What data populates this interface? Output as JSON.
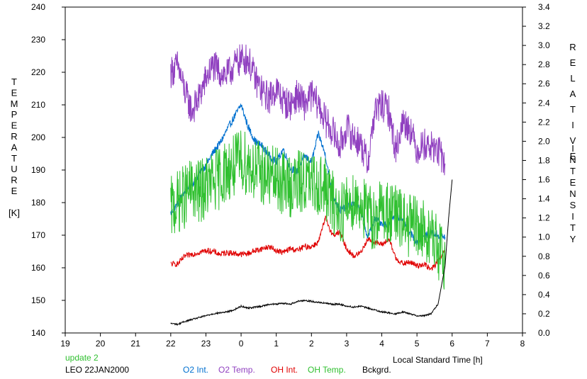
{
  "chart_data": {
    "type": "line",
    "xlabel": "Local Standard Time [h]",
    "ylabel_left": [
      "T",
      "E",
      "M",
      "P",
      "E",
      "R",
      "A",
      "T",
      "U",
      "R",
      "E",
      "",
      "[K]"
    ],
    "ylabel_right_top": [
      "R",
      "E",
      "L",
      "A",
      "T",
      "I",
      "V",
      "E"
    ],
    "ylabel_right_bottom": [
      "I",
      "N",
      "T",
      "E",
      "N",
      "S",
      "I",
      "T",
      "Y"
    ],
    "x_ticks": [
      "19",
      "20",
      "21",
      "22",
      "23",
      "0",
      "1",
      "2",
      "3",
      "4",
      "5",
      "6",
      "7",
      "8"
    ],
    "y_left_ticks": [
      "140",
      "150",
      "160",
      "170",
      "180",
      "190",
      "200",
      "210",
      "220",
      "230",
      "240"
    ],
    "y_right_ticks": [
      "0.0",
      "0.2",
      "0.4",
      "0.6",
      "0.8",
      "1.0",
      "1.2",
      "1.4",
      "1.6",
      "1.8",
      "2.0",
      "2.2",
      "2.4",
      "2.6",
      "2.8",
      "3.0",
      "3.2",
      "3.4"
    ],
    "xlim": [
      19,
      32
    ],
    "ylim_left": [
      140,
      240
    ],
    "ylim_right": [
      0.0,
      3.4
    ],
    "grid": false,
    "series": [
      {
        "name": "O2 Int.",
        "color": "#0070d0",
        "axis": "right",
        "x": [
          22.0,
          22.2,
          22.4,
          22.6,
          22.8,
          23.0,
          23.2,
          23.4,
          23.6,
          23.8,
          24.0,
          24.2,
          24.4,
          24.6,
          24.8,
          25.0,
          25.2,
          25.4,
          25.6,
          25.8,
          26.0,
          26.2,
          26.4,
          26.6,
          26.8,
          27.0,
          27.2,
          27.4,
          27.6,
          27.8,
          28.0,
          28.2,
          28.4,
          28.6,
          28.8,
          29.0,
          29.2,
          29.4,
          29.6,
          29.8
        ],
        "y": [
          1.25,
          1.35,
          1.48,
          1.55,
          1.65,
          1.75,
          1.88,
          1.98,
          2.12,
          2.25,
          2.38,
          2.15,
          2.0,
          1.95,
          1.85,
          1.78,
          1.92,
          1.72,
          1.68,
          1.85,
          1.78,
          2.08,
          1.85,
          1.45,
          1.28,
          1.32,
          1.35,
          1.28,
          1.0,
          1.18,
          1.15,
          1.12,
          1.25,
          1.15,
          1.05,
          0.95,
          1.0,
          1.05,
          1.02,
          1.0
        ]
      },
      {
        "name": "O2 Temp.",
        "color": "#9040c0",
        "axis": "left",
        "x": [
          22.0,
          22.2,
          22.4,
          22.6,
          22.8,
          23.0,
          23.2,
          23.4,
          23.6,
          23.8,
          24.0,
          24.2,
          24.4,
          24.6,
          24.8,
          25.0,
          25.2,
          25.4,
          25.6,
          25.8,
          26.0,
          26.2,
          26.4,
          26.6,
          26.8,
          27.0,
          27.2,
          27.4,
          27.6,
          27.8,
          28.0,
          28.2,
          28.4,
          28.6,
          28.8,
          29.0,
          29.2,
          29.4,
          29.6,
          29.8
        ],
        "y": [
          220,
          222,
          214,
          208,
          212,
          218,
          222,
          220,
          219,
          222,
          224,
          224,
          218,
          214,
          212,
          215,
          211,
          210,
          213,
          210,
          213,
          210,
          205,
          202,
          197,
          203,
          200,
          198,
          192,
          208,
          210,
          208,
          196,
          205,
          203,
          196,
          198,
          197,
          196,
          192
        ]
      },
      {
        "name": "OH Int.",
        "color": "#e00000",
        "axis": "right",
        "x": [
          22.0,
          22.2,
          22.4,
          22.6,
          22.8,
          23.0,
          23.2,
          23.4,
          23.6,
          23.8,
          24.0,
          24.2,
          24.4,
          24.6,
          24.8,
          25.0,
          25.2,
          25.4,
          25.6,
          25.8,
          26.0,
          26.2,
          26.4,
          26.6,
          26.8,
          27.0,
          27.2,
          27.4,
          27.6,
          27.8,
          28.0,
          28.2,
          28.4,
          28.6,
          28.8,
          29.0,
          29.2,
          29.4,
          29.6,
          29.8
        ],
        "y": [
          0.72,
          0.72,
          0.8,
          0.82,
          0.84,
          0.86,
          0.85,
          0.82,
          0.84,
          0.83,
          0.82,
          0.83,
          0.86,
          0.88,
          0.9,
          0.86,
          0.84,
          0.88,
          0.86,
          0.9,
          0.9,
          0.95,
          1.2,
          1.02,
          1.05,
          0.88,
          0.8,
          0.84,
          0.98,
          0.95,
          0.92,
          0.98,
          0.78,
          0.72,
          0.74,
          0.7,
          0.72,
          0.66,
          0.75,
          0.85
        ]
      },
      {
        "name": "OH Temp.",
        "color": "#30c030",
        "axis": "left",
        "x": [
          22.0,
          22.2,
          22.4,
          22.6,
          22.8,
          23.0,
          23.2,
          23.4,
          23.6,
          23.8,
          24.0,
          24.2,
          24.4,
          24.6,
          24.8,
          25.0,
          25.2,
          25.4,
          25.6,
          25.8,
          26.0,
          26.2,
          26.4,
          26.6,
          26.8,
          27.0,
          27.2,
          27.4,
          27.6,
          27.8,
          28.0,
          28.2,
          28.4,
          28.6,
          28.8,
          29.0,
          29.2,
          29.4,
          29.6,
          29.8
        ],
        "y": [
          178,
          180,
          182,
          184,
          183,
          185,
          186,
          188,
          190,
          191,
          193,
          192,
          190,
          189,
          188,
          187,
          186,
          185,
          186,
          187,
          185,
          186,
          184,
          180,
          177,
          179,
          181,
          180,
          176,
          175,
          178,
          177,
          176,
          174,
          173,
          172,
          171,
          170,
          166,
          161
        ]
      },
      {
        "name": "Bckgrd.",
        "color": "#000000",
        "axis": "right",
        "x": [
          22.0,
          22.2,
          22.4,
          22.6,
          22.8,
          23.0,
          23.2,
          23.4,
          23.6,
          23.8,
          24.0,
          24.2,
          24.4,
          24.6,
          24.8,
          25.0,
          25.2,
          25.4,
          25.6,
          25.8,
          26.0,
          26.2,
          26.4,
          26.6,
          26.8,
          27.0,
          27.2,
          27.4,
          27.6,
          27.8,
          28.0,
          28.2,
          28.4,
          28.6,
          28.8,
          29.0,
          29.2,
          29.4,
          29.6,
          29.8,
          29.9,
          30.0
        ],
        "y": [
          0.1,
          0.09,
          0.12,
          0.14,
          0.16,
          0.18,
          0.2,
          0.21,
          0.22,
          0.24,
          0.28,
          0.26,
          0.27,
          0.28,
          0.3,
          0.3,
          0.31,
          0.3,
          0.33,
          0.34,
          0.33,
          0.32,
          0.31,
          0.3,
          0.3,
          0.28,
          0.27,
          0.28,
          0.26,
          0.24,
          0.22,
          0.21,
          0.2,
          0.22,
          0.2,
          0.18,
          0.18,
          0.2,
          0.3,
          0.7,
          1.2,
          1.6
        ]
      }
    ]
  },
  "footer": {
    "update_label": "update 2",
    "site_date_label": "LEO 22JAN2000"
  }
}
